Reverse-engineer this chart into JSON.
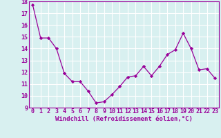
{
  "x": [
    0,
    1,
    2,
    3,
    4,
    5,
    6,
    7,
    8,
    9,
    10,
    11,
    12,
    13,
    14,
    15,
    16,
    17,
    18,
    19,
    20,
    21,
    22,
    23
  ],
  "y": [
    17.7,
    14.9,
    14.9,
    14.0,
    11.9,
    11.2,
    11.2,
    10.4,
    9.4,
    9.5,
    10.1,
    10.8,
    11.6,
    11.7,
    12.5,
    11.7,
    12.5,
    13.5,
    13.9,
    15.3,
    14.0,
    12.2,
    12.3,
    11.5
  ],
  "line_color": "#990099",
  "marker": "D",
  "markersize": 2.2,
  "linewidth": 0.9,
  "xlabel": "Windchill (Refroidissement éolien,°C)",
  "ylim": [
    9,
    18
  ],
  "xlim": [
    -0.5,
    23.5
  ],
  "yticks": [
    9,
    10,
    11,
    12,
    13,
    14,
    15,
    16,
    17,
    18
  ],
  "xticks": [
    0,
    1,
    2,
    3,
    4,
    5,
    6,
    7,
    8,
    9,
    10,
    11,
    12,
    13,
    14,
    15,
    16,
    17,
    18,
    19,
    20,
    21,
    22,
    23
  ],
  "bg_color": "#d8f0f0",
  "grid_color": "#b8d8d8",
  "label_color": "#990099",
  "xlabel_fontsize": 6.5,
  "tick_fontsize": 6.0,
  "fig_width": 3.2,
  "fig_height": 2.0,
  "dpi": 100
}
